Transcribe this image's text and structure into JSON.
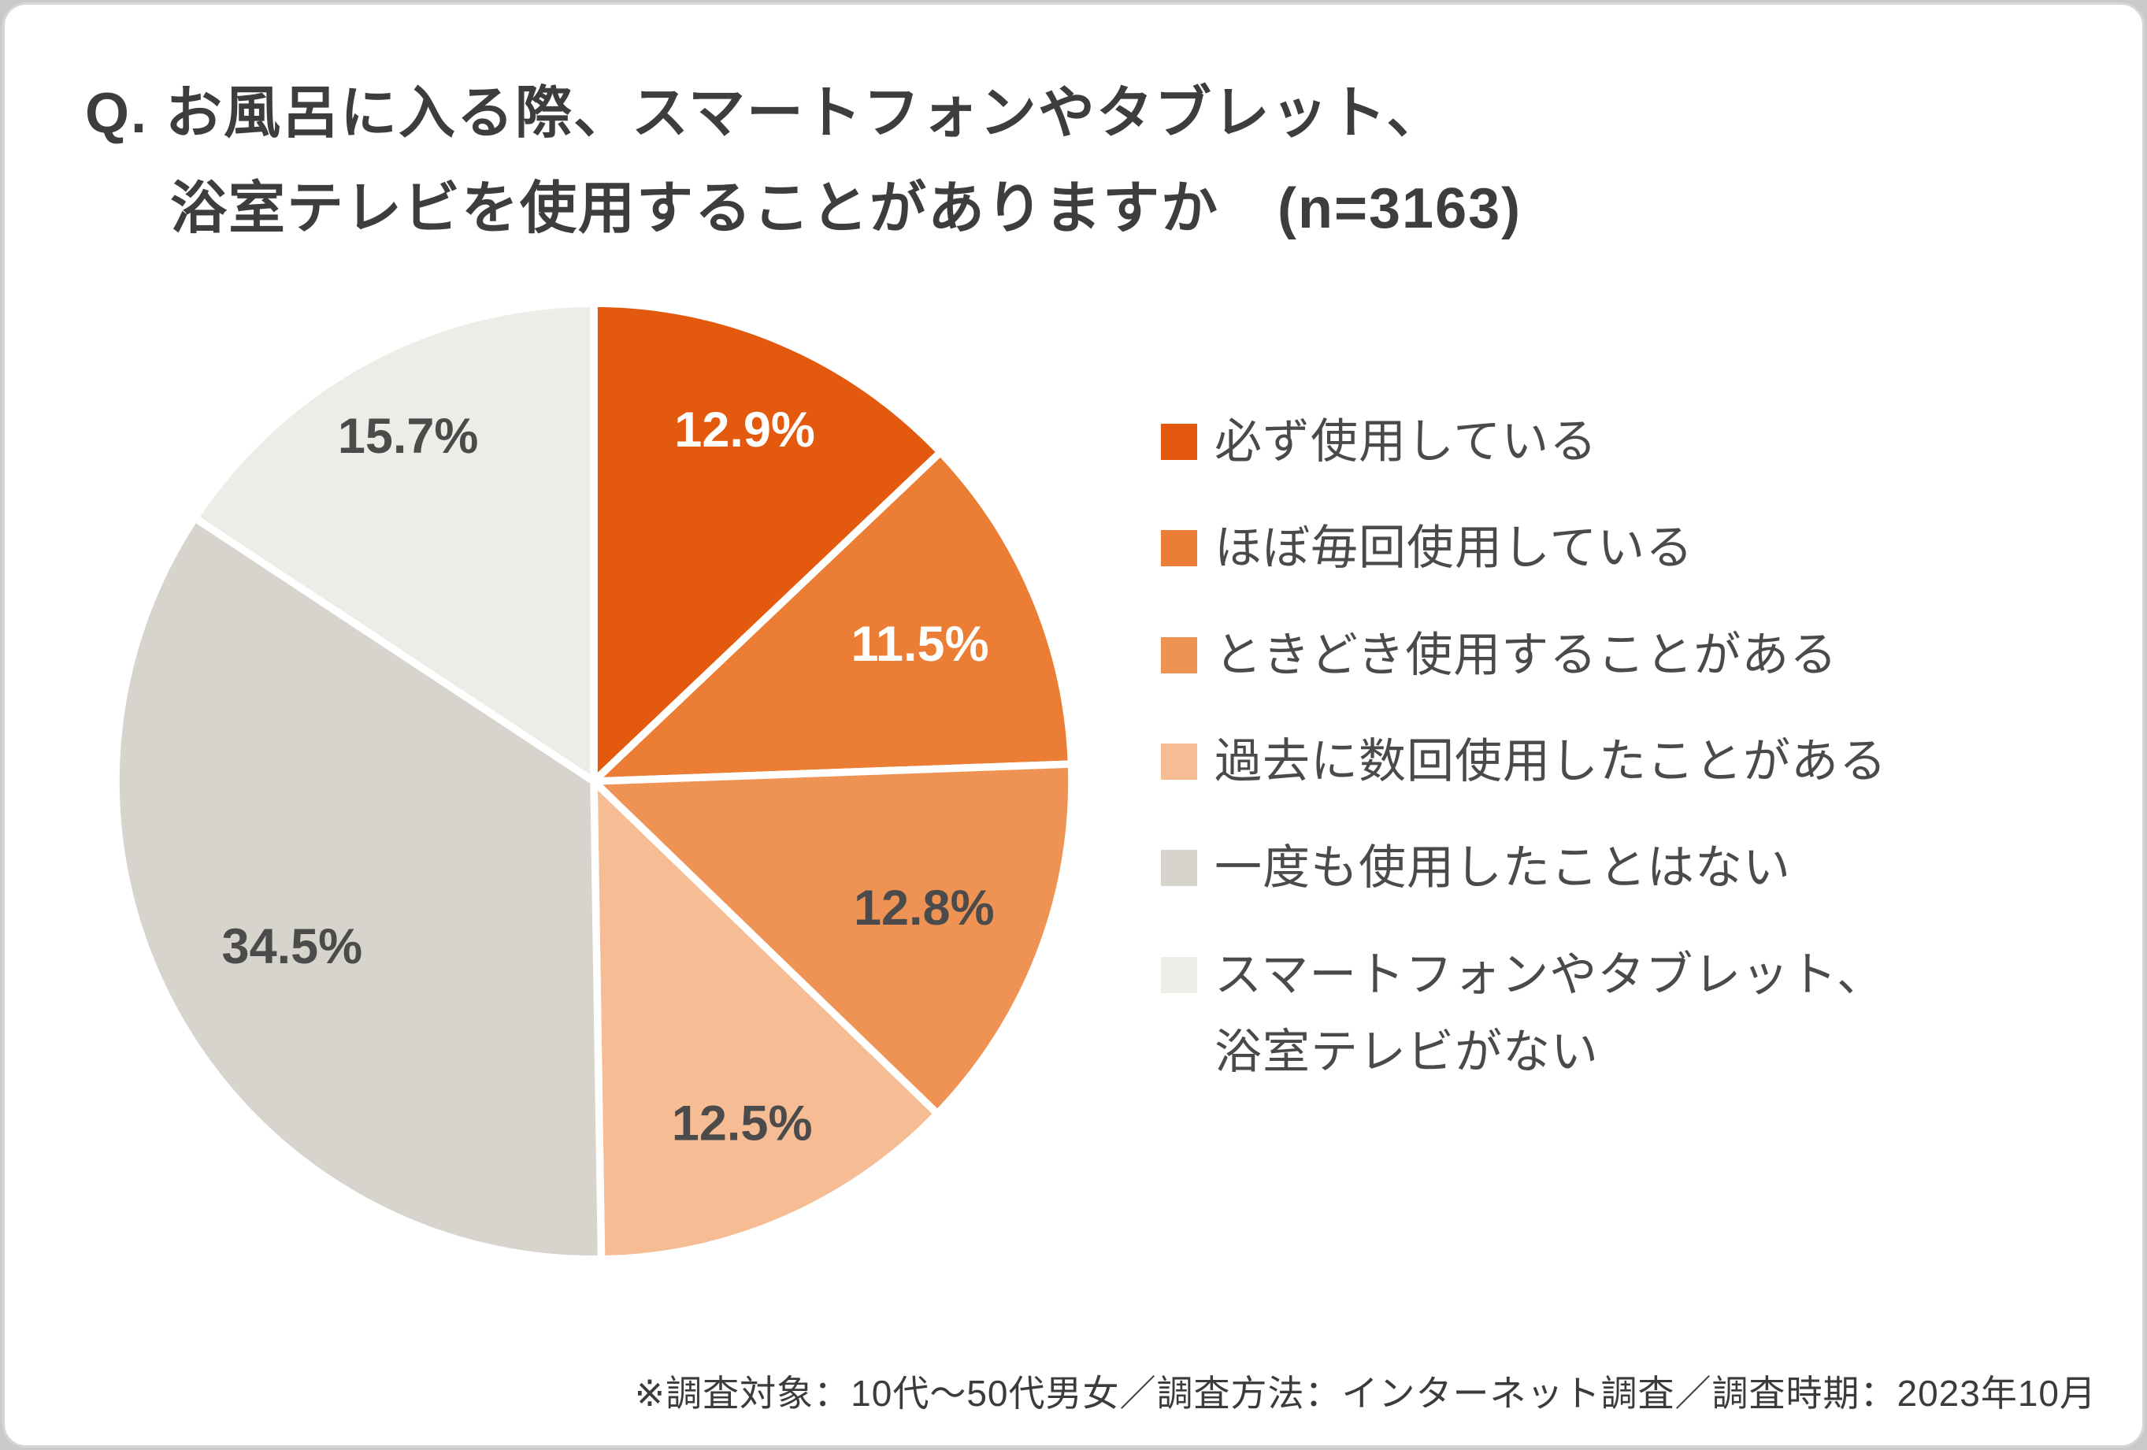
{
  "title": {
    "line1": "Q. お風呂に入る際、スマートフォンやタブレット、",
    "line2": "浴室テレビを使用することがありますか　(n=3163)"
  },
  "footer": {
    "text": "※調査対象：10代～50代男女／調査方法：インターネット調査／調査時期：2023年10月"
  },
  "chart_data": {
    "type": "pie",
    "title": "お風呂に入る際、スマートフォンやタブレット、浴室テレビを使用することがありますか",
    "sample_size": "n=3163",
    "start_angle_deg": 0,
    "direction": "clockwise",
    "value_suffix": "%",
    "separator_color": "#ffffff",
    "legend_position": "right",
    "series": [
      {
        "label": "必ず使用している",
        "legend_lines": [
          "必ず使用している"
        ],
        "value": 12.9,
        "color": "#e3590d",
        "label_color": "#ffffff",
        "label_r": 0.8
      },
      {
        "label": "ほぼ毎回使用している",
        "legend_lines": [
          "ほぼ毎回使用している"
        ],
        "value": 11.5,
        "color": "#eb7d35",
        "label_color": "#ffffff",
        "label_r": 0.74
      },
      {
        "label": "ときどき使用することがある",
        "legend_lines": [
          "ときどき使用することがある"
        ],
        "value": 12.8,
        "color": "#ef9355",
        "label_color": "#4b4b4b",
        "label_r": 0.74
      },
      {
        "label": "過去に数回使用したことがある",
        "legend_lines": [
          "過去に数回使用したことがある"
        ],
        "value": 12.5,
        "color": "#f6bd94",
        "label_color": "#4b4b4b",
        "label_r": 0.78
      },
      {
        "label": "一度も使用したことはない",
        "legend_lines": [
          "一度も使用したことはない"
        ],
        "value": 34.5,
        "color": "#d7d3cd",
        "label_color": "#4b4b4b",
        "label_r": 0.72
      },
      {
        "label": "スマートフォンやタブレット、浴室テレビがない",
        "legend_lines": [
          "スマートフォンやタブレット、",
          "浴室テレビがない"
        ],
        "value": 15.7,
        "color": "#eeece7",
        "label_color": "#4b4b4b",
        "label_r": 0.82
      }
    ]
  }
}
